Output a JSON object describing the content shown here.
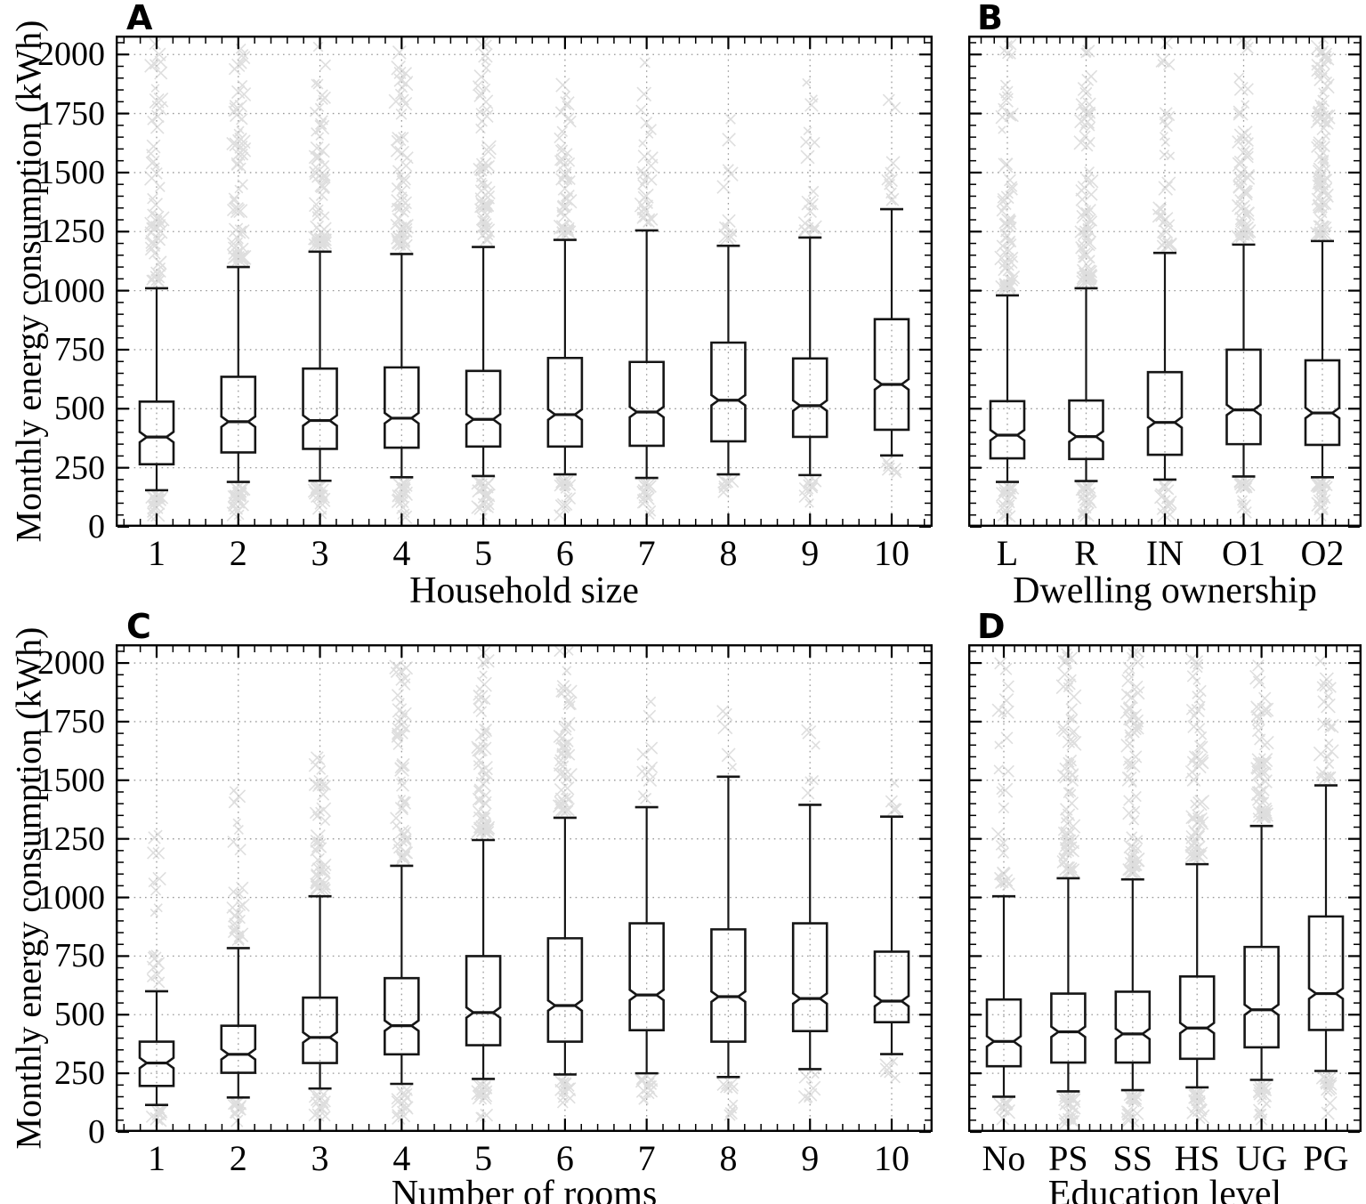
{
  "figure_title": "",
  "chart_data": {
    "type": "box",
    "notched": true,
    "marker": "x-cross",
    "ylabel": "Monthly energy consumption (kWh)",
    "ylim": [
      0,
      2080
    ],
    "y_ticks": [
      0,
      250,
      500,
      750,
      1000,
      1250,
      1500,
      1750,
      2000
    ],
    "y_minor_step": 50,
    "grid": "dotted horizontal lines at y ticks, dotted vertical line at each category",
    "legend": "none",
    "colors": {
      "box_stroke": "#161616",
      "whisker": "#161616",
      "outlier": "#c4c4c4",
      "grid": "#999999",
      "axis": "#000000",
      "background": "#ffffff"
    },
    "panels": [
      {
        "letter": "A",
        "xlabel": "Household size",
        "categories": [
          "1",
          "2",
          "3",
          "4",
          "5",
          "6",
          "7",
          "8",
          "9",
          "10"
        ],
        "boxes": [
          {
            "whisker_lo": 155,
            "q1": 265,
            "median": 380,
            "q3": 530,
            "whisker_hi": 1010,
            "outliers_above": {
              "start": 1040,
              "end": 2050,
              "count": 55
            },
            "outliers_below": {
              "start": 130,
              "end": 40,
              "count": 22
            }
          },
          {
            "whisker_lo": 190,
            "q1": 315,
            "median": 445,
            "q3": 635,
            "whisker_hi": 1100,
            "outliers_above": {
              "start": 1130,
              "end": 2060,
              "count": 65
            },
            "outliers_below": {
              "start": 165,
              "end": 40,
              "count": 22
            }
          },
          {
            "whisker_lo": 195,
            "q1": 330,
            "median": 450,
            "q3": 670,
            "whisker_hi": 1165,
            "outliers_above": {
              "start": 1195,
              "end": 2050,
              "count": 60
            },
            "outliers_below": {
              "start": 170,
              "end": 40,
              "count": 20
            }
          },
          {
            "whisker_lo": 210,
            "q1": 335,
            "median": 460,
            "q3": 675,
            "whisker_hi": 1155,
            "outliers_above": {
              "start": 1185,
              "end": 2060,
              "count": 60
            },
            "outliers_below": {
              "start": 185,
              "end": 40,
              "count": 20
            }
          },
          {
            "whisker_lo": 215,
            "q1": 340,
            "median": 455,
            "q3": 660,
            "whisker_hi": 1185,
            "outliers_above": {
              "start": 1215,
              "end": 2050,
              "count": 58
            },
            "outliers_below": {
              "start": 190,
              "end": 40,
              "count": 20
            }
          },
          {
            "whisker_lo": 222,
            "q1": 340,
            "median": 475,
            "q3": 715,
            "whisker_hi": 1215,
            "outliers_above": {
              "start": 1245,
              "end": 2050,
              "count": 45
            },
            "outliers_below": {
              "start": 195,
              "end": 45,
              "count": 18
            }
          },
          {
            "whisker_lo": 207,
            "q1": 343,
            "median": 486,
            "q3": 698,
            "whisker_hi": 1255,
            "outliers_above": {
              "start": 1285,
              "end": 2050,
              "count": 30
            },
            "outliers_below": {
              "start": 182,
              "end": 45,
              "count": 16
            }
          },
          {
            "whisker_lo": 222,
            "q1": 362,
            "median": 536,
            "q3": 780,
            "whisker_hi": 1190,
            "outliers_above": {
              "start": 1220,
              "end": 1950,
              "count": 12
            },
            "outliers_below": {
              "start": 200,
              "end": 110,
              "count": 7
            }
          },
          {
            "whisker_lo": 219,
            "q1": 381,
            "median": 513,
            "q3": 713,
            "whisker_hi": 1225,
            "outliers_above": {
              "start": 1255,
              "end": 2050,
              "count": 18
            },
            "outliers_below": {
              "start": 195,
              "end": 90,
              "count": 9
            }
          },
          {
            "whisker_lo": 302,
            "q1": 411,
            "median": 603,
            "q3": 879,
            "whisker_hi": 1345,
            "outliers_above": {
              "start": 1380,
              "end": 1840,
              "count": 10
            },
            "outliers_below": {
              "start": 275,
              "end": 180,
              "count": 6
            }
          }
        ]
      },
      {
        "letter": "B",
        "xlabel": "Dwelling ownership",
        "categories": [
          "L",
          "R",
          "IN",
          "O1",
          "O2"
        ],
        "boxes": [
          {
            "whisker_lo": 190,
            "q1": 290,
            "median": 388,
            "q3": 532,
            "whisker_hi": 980,
            "outliers_above": {
              "start": 1010,
              "end": 2060,
              "count": 70
            },
            "outliers_below": {
              "start": 165,
              "end": 35,
              "count": 22
            }
          },
          {
            "whisker_lo": 194,
            "q1": 287,
            "median": 382,
            "q3": 535,
            "whisker_hi": 1010,
            "outliers_above": {
              "start": 1040,
              "end": 2060,
              "count": 72
            },
            "outliers_below": {
              "start": 168,
              "end": 35,
              "count": 22
            }
          },
          {
            "whisker_lo": 200,
            "q1": 305,
            "median": 442,
            "q3": 655,
            "whisker_hi": 1160,
            "outliers_above": {
              "start": 1190,
              "end": 2050,
              "count": 32
            },
            "outliers_below": {
              "start": 175,
              "end": 40,
              "count": 14
            }
          },
          {
            "whisker_lo": 213,
            "q1": 350,
            "median": 495,
            "q3": 750,
            "whisker_hi": 1195,
            "outliers_above": {
              "start": 1225,
              "end": 2060,
              "count": 60
            },
            "outliers_below": {
              "start": 190,
              "end": 40,
              "count": 18
            }
          },
          {
            "whisker_lo": 210,
            "q1": 347,
            "median": 482,
            "q3": 705,
            "whisker_hi": 1210,
            "outliers_above": {
              "start": 1240,
              "end": 2070,
              "count": 88
            },
            "outliers_below": {
              "start": 188,
              "end": 35,
              "count": 24
            }
          }
        ]
      },
      {
        "letter": "C",
        "xlabel": "Number of rooms",
        "categories": [
          "1",
          "2",
          "3",
          "4",
          "5",
          "6",
          "7",
          "8",
          "9",
          "10"
        ],
        "boxes": [
          {
            "whisker_lo": 115,
            "q1": 196,
            "median": 294,
            "q3": 385,
            "whisker_hi": 600,
            "outliers_above": {
              "start": 630,
              "end": 1300,
              "count": 18
            },
            "outliers_below": {
              "start": 98,
              "end": 40,
              "count": 10
            }
          },
          {
            "whisker_lo": 147,
            "q1": 252,
            "median": 331,
            "q3": 453,
            "whisker_hi": 784,
            "outliers_above": {
              "start": 815,
              "end": 1480,
              "count": 28
            },
            "outliers_below": {
              "start": 125,
              "end": 40,
              "count": 12
            }
          },
          {
            "whisker_lo": 185,
            "q1": 294,
            "median": 403,
            "q3": 573,
            "whisker_hi": 1005,
            "outliers_above": {
              "start": 1035,
              "end": 1660,
              "count": 42
            },
            "outliers_below": {
              "start": 160,
              "end": 40,
              "count": 15
            }
          },
          {
            "whisker_lo": 205,
            "q1": 331,
            "median": 453,
            "q3": 656,
            "whisker_hi": 1135,
            "outliers_above": {
              "start": 1165,
              "end": 2010,
              "count": 52
            },
            "outliers_below": {
              "start": 180,
              "end": 40,
              "count": 15
            }
          },
          {
            "whisker_lo": 226,
            "q1": 370,
            "median": 509,
            "q3": 750,
            "whisker_hi": 1245,
            "outliers_above": {
              "start": 1275,
              "end": 2060,
              "count": 58
            },
            "outliers_below": {
              "start": 200,
              "end": 45,
              "count": 15
            }
          },
          {
            "whisker_lo": 245,
            "q1": 385,
            "median": 539,
            "q3": 826,
            "whisker_hi": 1340,
            "outliers_above": {
              "start": 1370,
              "end": 2060,
              "count": 48
            },
            "outliers_below": {
              "start": 215,
              "end": 60,
              "count": 13
            }
          },
          {
            "whisker_lo": 250,
            "q1": 434,
            "median": 584,
            "q3": 890,
            "whisker_hi": 1385,
            "outliers_above": {
              "start": 1415,
              "end": 1850,
              "count": 10
            },
            "outliers_below": {
              "start": 225,
              "end": 75,
              "count": 12
            }
          },
          {
            "whisker_lo": 234,
            "q1": 385,
            "median": 577,
            "q3": 864,
            "whisker_hi": 1515,
            "outliers_above": {
              "start": 1545,
              "end": 1850,
              "count": 5
            },
            "outliers_below": {
              "start": 210,
              "end": 70,
              "count": 11
            }
          },
          {
            "whisker_lo": 268,
            "q1": 430,
            "median": 569,
            "q3": 890,
            "whisker_hi": 1395,
            "outliers_above": {
              "start": 1425,
              "end": 1830,
              "count": 6
            },
            "outliers_below": {
              "start": 245,
              "end": 140,
              "count": 6
            }
          },
          {
            "whisker_lo": 332,
            "q1": 468,
            "median": 558,
            "q3": 769,
            "whisker_hi": 1345,
            "outliers_above": {
              "start": 1375,
              "end": 1520,
              "count": 4
            },
            "outliers_below": {
              "start": 305,
              "end": 215,
              "count": 5
            }
          }
        ]
      },
      {
        "letter": "D",
        "xlabel": "Education level",
        "categories": [
          "No",
          "PS",
          "SS",
          "HS",
          "UG",
          "PG"
        ],
        "boxes": [
          {
            "whisker_lo": 150,
            "q1": 280,
            "median": 386,
            "q3": 565,
            "whisker_hi": 1005,
            "outliers_above": {
              "start": 1035,
              "end": 2030,
              "count": 26
            },
            "outliers_below": {
              "start": 128,
              "end": 45,
              "count": 10
            }
          },
          {
            "whisker_lo": 173,
            "q1": 296,
            "median": 427,
            "q3": 590,
            "whisker_hi": 1082,
            "outliers_above": {
              "start": 1112,
              "end": 2060,
              "count": 66
            },
            "outliers_below": {
              "start": 150,
              "end": 35,
              "count": 20
            }
          },
          {
            "whisker_lo": 178,
            "q1": 296,
            "median": 418,
            "q3": 598,
            "whisker_hi": 1077,
            "outliers_above": {
              "start": 1107,
              "end": 2060,
              "count": 62
            },
            "outliers_below": {
              "start": 155,
              "end": 35,
              "count": 20
            }
          },
          {
            "whisker_lo": 190,
            "q1": 312,
            "median": 443,
            "q3": 663,
            "whisker_hi": 1142,
            "outliers_above": {
              "start": 1172,
              "end": 2060,
              "count": 58
            },
            "outliers_below": {
              "start": 165,
              "end": 40,
              "count": 18
            }
          },
          {
            "whisker_lo": 222,
            "q1": 361,
            "median": 521,
            "q3": 789,
            "whisker_hi": 1305,
            "outliers_above": {
              "start": 1335,
              "end": 2060,
              "count": 52
            },
            "outliers_below": {
              "start": 195,
              "end": 40,
              "count": 18
            }
          },
          {
            "whisker_lo": 260,
            "q1": 435,
            "median": 590,
            "q3": 919,
            "whisker_hi": 1478,
            "outliers_above": {
              "start": 1508,
              "end": 2050,
              "count": 24
            },
            "outliers_below": {
              "start": 235,
              "end": 60,
              "count": 14
            }
          }
        ]
      }
    ]
  }
}
